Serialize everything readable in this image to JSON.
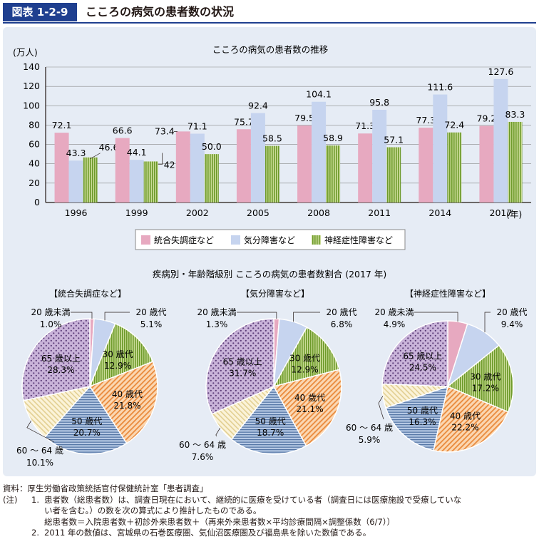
{
  "header": {
    "figure_label": "図表 1-2-9",
    "title": "こころの病気の患者数の状況"
  },
  "chart_data": [
    {
      "type": "bar",
      "title": "こころの病気の患者数の推移",
      "ylabel": "(万人)",
      "xunit": "(年)",
      "ylim": [
        0,
        140
      ],
      "yticks": [
        0,
        20,
        40,
        60,
        80,
        100,
        120,
        140
      ],
      "categories": [
        "1996",
        "1999",
        "2002",
        "2005",
        "2008",
        "2011",
        "2014",
        "2017"
      ],
      "series": [
        {
          "name": "統合失調症など",
          "color": "#e7a9c0",
          "values": [
            72.1,
            66.6,
            73.4,
            75.7,
            79.5,
            71.3,
            77.3,
            79.2
          ]
        },
        {
          "name": "気分障害など",
          "color": "#c6d4ef",
          "values": [
            43.3,
            44.1,
            71.1,
            92.4,
            104.1,
            95.8,
            111.6,
            127.6
          ]
        },
        {
          "name": "神経症性障害など",
          "color": "#8fb046",
          "values": [
            46.6,
            42.4,
            50.0,
            58.5,
            58.9,
            57.1,
            72.4,
            83.3
          ]
        }
      ],
      "legend": "bottom"
    },
    {
      "type": "pie",
      "suptitle": "疾病別・年齢階級別 こころの病気の患者数割合 (2017 年)",
      "charts": [
        {
          "title": "【統合失調症など】",
          "slices": [
            {
              "label": "20 歳未満",
              "value": 1.0
            },
            {
              "label": "20 歳代",
              "value": 5.1
            },
            {
              "label": "30 歳代",
              "value": 12.9
            },
            {
              "label": "40 歳代",
              "value": 21.8
            },
            {
              "label": "50 歳代",
              "value": 20.7
            },
            {
              "label": "60 ～ 64 歳",
              "value": 10.1
            },
            {
              "label": "65 歳以上",
              "value": 28.3
            }
          ]
        },
        {
          "title": "【気分障害など】",
          "slices": [
            {
              "label": "20 歳未満",
              "value": 1.3
            },
            {
              "label": "20 歳代",
              "value": 6.8
            },
            {
              "label": "30 歳代",
              "value": 12.9
            },
            {
              "label": "40 歳代",
              "value": 21.1
            },
            {
              "label": "50 歳代",
              "value": 18.7
            },
            {
              "label": "60 ～ 64 歳",
              "value": 7.6
            },
            {
              "label": "65 歳以上",
              "value": 31.7
            }
          ]
        },
        {
          "title": "【神経症性障害など】",
          "slices": [
            {
              "label": "20 歳未満",
              "value": 4.9
            },
            {
              "label": "20 歳代",
              "value": 9.4
            },
            {
              "label": "30 歳代",
              "value": 17.2
            },
            {
              "label": "40 歳代",
              "value": 22.2
            },
            {
              "label": "50 歳代",
              "value": 16.3
            },
            {
              "label": "60 ～ 64 歳",
              "value": 5.9
            },
            {
              "label": "65 歳以上",
              "value": 24.5
            }
          ]
        }
      ]
    }
  ],
  "notes": {
    "source_head": "資料：",
    "source": "厚生労働省政策統括官付保健統計室「患者調査」",
    "note_head": "(注)",
    "items": [
      {
        "num": "1.",
        "lines": [
          "患者数（総患者数）は、調査日現在において、継続的に医療を受けている者（調査日には医療施設で受療していな",
          "い者を含む。）の数を次の算式により推計したものである。",
          "総患者数＝入院患者数＋初診外来患者数＋（再来外来患者数×平均診療間隔×調整係数（6/7））"
        ]
      },
      {
        "num": "2.",
        "lines": [
          "2011 年の数値は、宮城県の石巻医療圏、気仙沼医療圏及び福島県を除いた数値である。"
        ]
      }
    ]
  }
}
